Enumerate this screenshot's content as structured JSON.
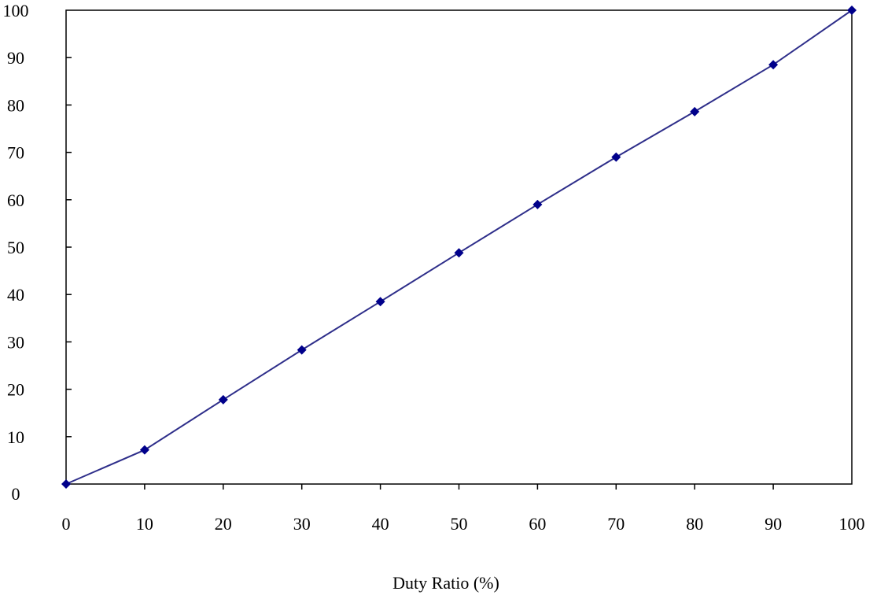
{
  "colors": {
    "series": "#2e2e8a",
    "marker": "#00008b",
    "axis": "#000000",
    "background": "#ffffff"
  },
  "chart_data": {
    "type": "line",
    "title": "",
    "xlabel": "Duty Ratio (%)",
    "ylabel": "",
    "xlim": [
      0,
      100
    ],
    "ylim": [
      0,
      100
    ],
    "x_ticks": [
      0,
      10,
      20,
      30,
      40,
      50,
      60,
      70,
      80,
      90,
      100
    ],
    "y_ticks": [
      0,
      10,
      20,
      30,
      40,
      50,
      60,
      70,
      80,
      90,
      100
    ],
    "grid": false,
    "legend": "none",
    "series": [
      {
        "marker": "diamond",
        "x": [
          0,
          10,
          20,
          30,
          40,
          50,
          60,
          70,
          80,
          90,
          100
        ],
        "y": [
          0,
          7.2,
          17.8,
          28.3,
          38.5,
          48.8,
          59,
          69,
          78.6,
          88.5,
          100
        ]
      }
    ]
  }
}
